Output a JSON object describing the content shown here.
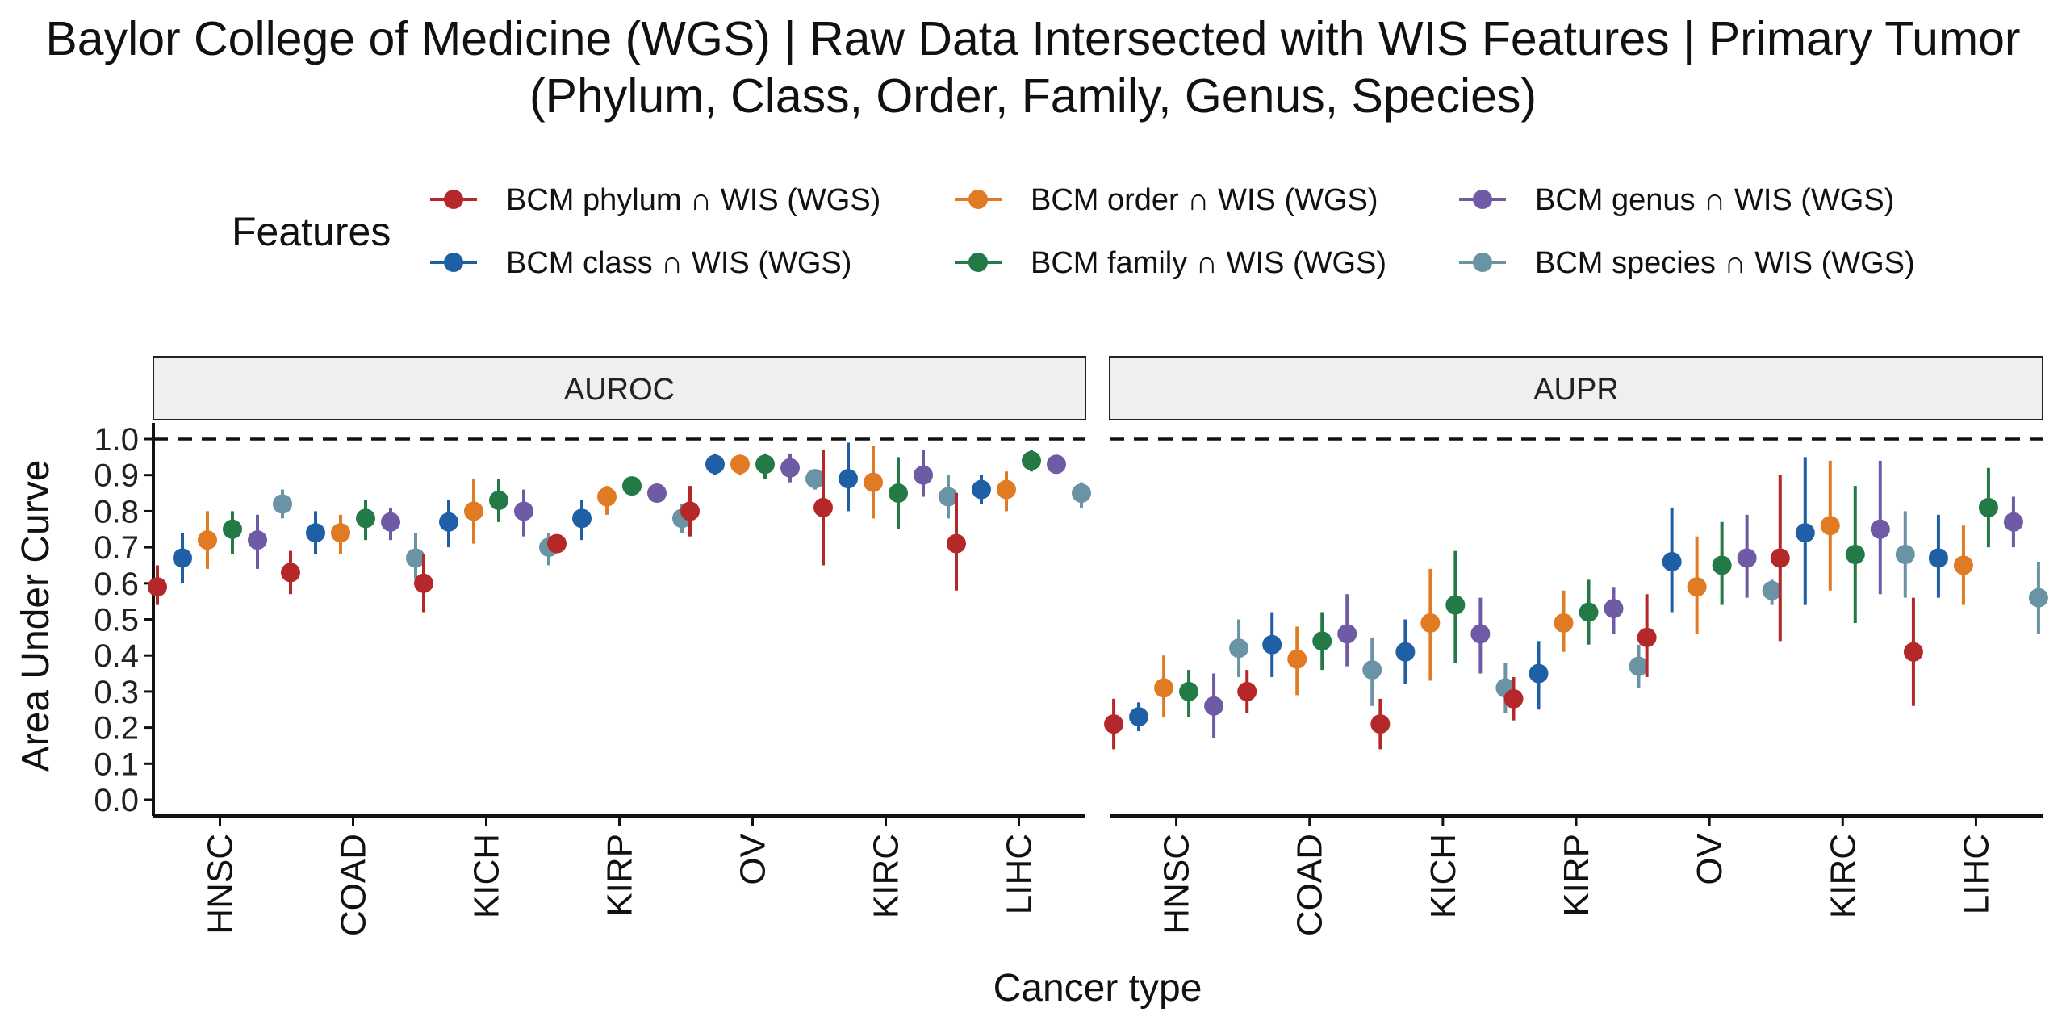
{
  "title": {
    "line1": "Baylor College of Medicine (WGS) | Raw Data Intersected with WIS Features  | Primary Tumor",
    "line2": "(Phylum, Class, Order, Family, Genus, Species)"
  },
  "legend": {
    "title": "Features",
    "placement": "top"
  },
  "colors": {
    "phylum": "#b5282a",
    "class": "#1f5fa6",
    "order": "#e07b24",
    "family": "#237a47",
    "genus": "#6f5aa6",
    "species": "#6a93a6"
  },
  "chart_data": {
    "type": "scatter",
    "subtype": "pointrange",
    "xlabel": "Cancer type",
    "ylabel": "Area Under Curve",
    "ylim": [
      0,
      1
    ],
    "yticks": [
      "0.0",
      "0.1",
      "0.2",
      "0.3",
      "0.4",
      "0.5",
      "0.6",
      "0.7",
      "0.8",
      "0.9",
      "1.0"
    ],
    "reference_line": 1.0,
    "categories": [
      "HNSC",
      "COAD",
      "KICH",
      "KIRP",
      "OV",
      "KIRC",
      "LIHC"
    ],
    "series": [
      {
        "key": "phylum",
        "name": "BCM phylum ∩ WIS (WGS)"
      },
      {
        "key": "class",
        "name": "BCM class ∩ WIS (WGS)"
      },
      {
        "key": "order",
        "name": "BCM order ∩ WIS (WGS)"
      },
      {
        "key": "family",
        "name": "BCM family ∩ WIS (WGS)"
      },
      {
        "key": "genus",
        "name": "BCM genus ∩ WIS (WGS)"
      },
      {
        "key": "species",
        "name": "BCM species ∩ WIS (WGS)"
      }
    ],
    "panels": [
      {
        "label": "AUROC",
        "data": {
          "HNSC": {
            "phylum": [
              0.59,
              0.54,
              0.65
            ],
            "class": [
              0.67,
              0.6,
              0.74
            ],
            "order": [
              0.72,
              0.64,
              0.8
            ],
            "family": [
              0.75,
              0.68,
              0.8
            ],
            "genus": [
              0.72,
              0.64,
              0.79
            ],
            "species": [
              0.82,
              0.78,
              0.86
            ]
          },
          "COAD": {
            "phylum": [
              0.63,
              0.57,
              0.69
            ],
            "class": [
              0.74,
              0.68,
              0.8
            ],
            "order": [
              0.74,
              0.68,
              0.79
            ],
            "family": [
              0.78,
              0.72,
              0.83
            ],
            "genus": [
              0.77,
              0.72,
              0.81
            ],
            "species": [
              0.67,
              0.61,
              0.74
            ]
          },
          "KICH": {
            "phylum": [
              0.6,
              0.52,
              0.68
            ],
            "class": [
              0.77,
              0.7,
              0.83
            ],
            "order": [
              0.8,
              0.71,
              0.89
            ],
            "family": [
              0.83,
              0.77,
              0.89
            ],
            "genus": [
              0.8,
              0.73,
              0.86
            ],
            "species": [
              0.7,
              0.65,
              0.74
            ]
          },
          "KIRP": {
            "phylum": [
              0.71,
              0.69,
              0.73
            ],
            "class": [
              0.78,
              0.72,
              0.83
            ],
            "order": [
              0.84,
              0.79,
              0.87
            ],
            "family": [
              0.87,
              0.85,
              0.89
            ],
            "genus": [
              0.85,
              0.83,
              0.87
            ],
            "species": [
              0.78,
              0.74,
              0.82
            ]
          },
          "OV": {
            "phylum": [
              0.8,
              0.73,
              0.87
            ],
            "class": [
              0.93,
              0.9,
              0.96
            ],
            "order": [
              0.93,
              0.9,
              0.95
            ],
            "family": [
              0.93,
              0.89,
              0.96
            ],
            "genus": [
              0.92,
              0.88,
              0.96
            ],
            "species": [
              0.89,
              0.86,
              0.91
            ]
          },
          "KIRC": {
            "phylum": [
              0.81,
              0.65,
              0.97
            ],
            "class": [
              0.89,
              0.8,
              0.99
            ],
            "order": [
              0.88,
              0.78,
              0.98
            ],
            "family": [
              0.85,
              0.75,
              0.95
            ],
            "genus": [
              0.9,
              0.84,
              0.97
            ],
            "species": [
              0.84,
              0.78,
              0.9
            ]
          },
          "LIHC": {
            "phylum": [
              0.71,
              0.58,
              0.85
            ],
            "class": [
              0.86,
              0.82,
              0.9
            ],
            "order": [
              0.86,
              0.8,
              0.91
            ],
            "family": [
              0.94,
              0.91,
              0.97
            ],
            "genus": [
              0.93,
              0.91,
              0.95
            ],
            "species": [
              0.85,
              0.81,
              0.88
            ]
          }
        }
      },
      {
        "label": "AUPR",
        "data": {
          "HNSC": {
            "phylum": [
              0.21,
              0.14,
              0.28
            ],
            "class": [
              0.23,
              0.19,
              0.27
            ],
            "order": [
              0.31,
              0.23,
              0.4
            ],
            "family": [
              0.3,
              0.23,
              0.36
            ],
            "genus": [
              0.26,
              0.17,
              0.35
            ],
            "species": [
              0.42,
              0.34,
              0.5
            ]
          },
          "COAD": {
            "phylum": [
              0.3,
              0.24,
              0.36
            ],
            "class": [
              0.43,
              0.34,
              0.52
            ],
            "order": [
              0.39,
              0.29,
              0.48
            ],
            "family": [
              0.44,
              0.36,
              0.52
            ],
            "genus": [
              0.46,
              0.37,
              0.57
            ],
            "species": [
              0.36,
              0.26,
              0.45
            ]
          },
          "KICH": {
            "phylum": [
              0.21,
              0.14,
              0.28
            ],
            "class": [
              0.41,
              0.32,
              0.5
            ],
            "order": [
              0.49,
              0.33,
              0.64
            ],
            "family": [
              0.54,
              0.38,
              0.69
            ],
            "genus": [
              0.46,
              0.35,
              0.56
            ],
            "species": [
              0.31,
              0.24,
              0.38
            ]
          },
          "KIRP": {
            "phylum": [
              0.28,
              0.22,
              0.34
            ],
            "class": [
              0.35,
              0.25,
              0.44
            ],
            "order": [
              0.49,
              0.41,
              0.58
            ],
            "family": [
              0.52,
              0.43,
              0.61
            ],
            "genus": [
              0.53,
              0.46,
              0.59
            ],
            "species": [
              0.37,
              0.31,
              0.43
            ]
          },
          "OV": {
            "phylum": [
              0.45,
              0.34,
              0.57
            ],
            "class": [
              0.66,
              0.52,
              0.81
            ],
            "order": [
              0.59,
              0.46,
              0.73
            ],
            "family": [
              0.65,
              0.54,
              0.77
            ],
            "genus": [
              0.67,
              0.56,
              0.79
            ],
            "species": [
              0.58,
              0.54,
              0.61
            ]
          },
          "KIRC": {
            "phylum": [
              0.67,
              0.44,
              0.9
            ],
            "class": [
              0.74,
              0.54,
              0.95
            ],
            "order": [
              0.76,
              0.58,
              0.94
            ],
            "family": [
              0.68,
              0.49,
              0.87
            ],
            "genus": [
              0.75,
              0.57,
              0.94
            ],
            "species": [
              0.68,
              0.56,
              0.8
            ]
          },
          "LIHC": {
            "phylum": [
              0.41,
              0.26,
              0.56
            ],
            "class": [
              0.67,
              0.56,
              0.79
            ],
            "order": [
              0.65,
              0.54,
              0.76
            ],
            "family": [
              0.81,
              0.7,
              0.92
            ],
            "genus": [
              0.77,
              0.7,
              0.84
            ],
            "species": [
              0.56,
              0.46,
              0.66
            ]
          }
        }
      }
    ]
  }
}
